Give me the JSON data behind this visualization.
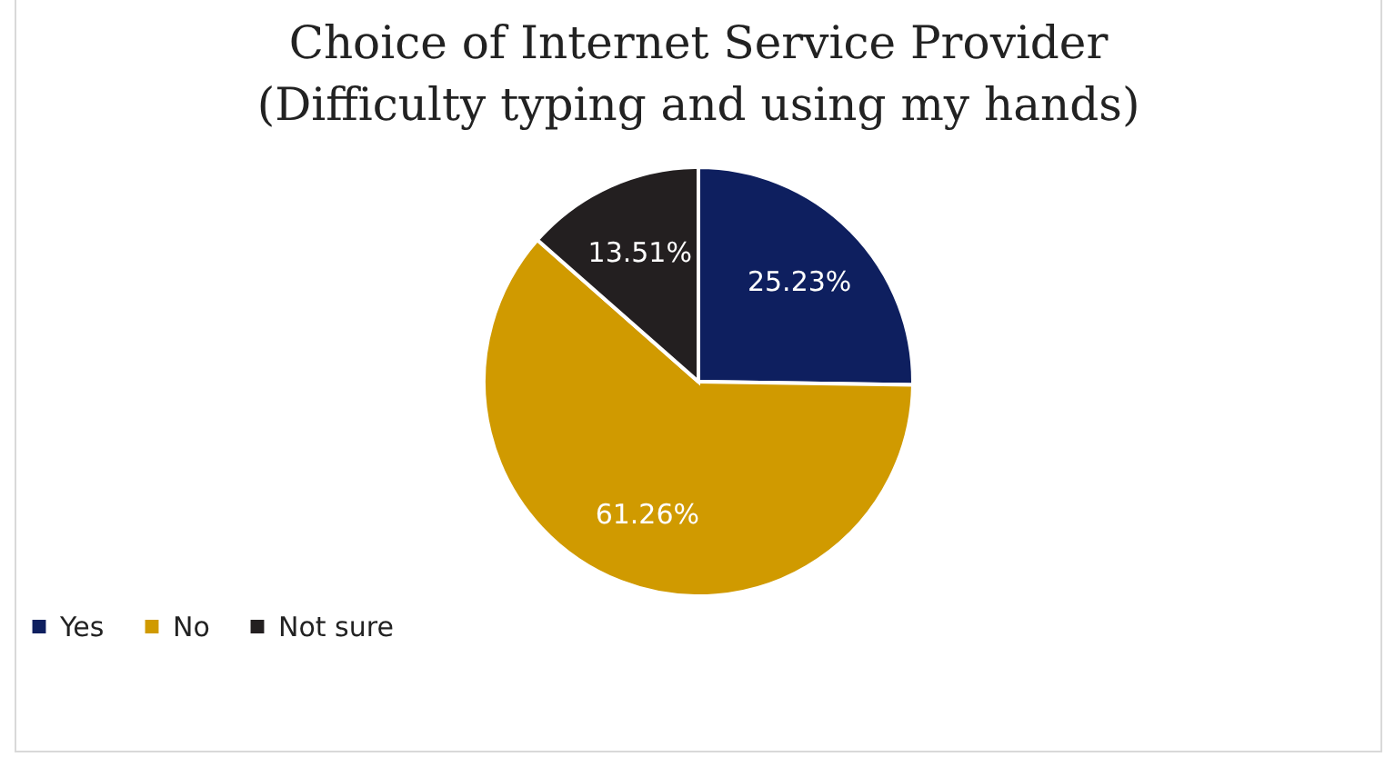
{
  "chart_data": {
    "type": "pie",
    "title": "Choice of Internet Service Provider\n(Difficulty typing and using my hands)",
    "categories": [
      "Yes",
      "No",
      "Not sure"
    ],
    "values": [
      25.23,
      61.26,
      13.51
    ],
    "colors": [
      "#0e1f5f",
      "#d09a00",
      "#231f20"
    ],
    "value_labels": [
      "25.23%",
      "61.26%",
      "13.51%"
    ],
    "legend": "bottom"
  }
}
